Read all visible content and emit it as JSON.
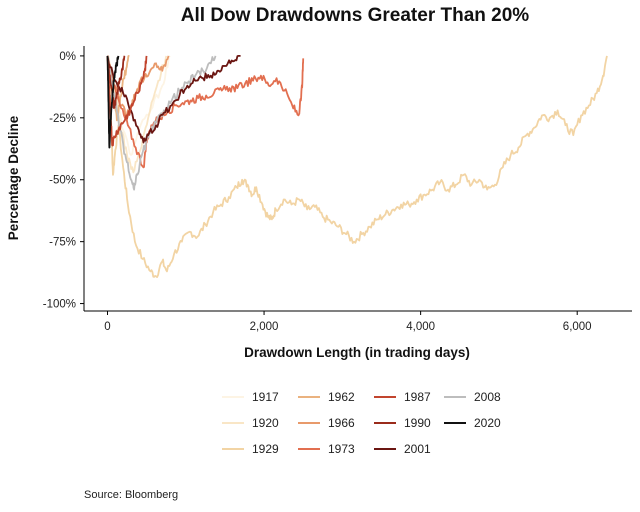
{
  "chart_data": {
    "type": "line",
    "title": "All Dow Drawdowns Greater Than 20%",
    "xlabel": "Drawdown Length (in trading days)",
    "ylabel": "Percentage Decline",
    "xlim": [
      -300,
      6700
    ],
    "ylim": [
      -103,
      4
    ],
    "x_ticks": [
      0,
      2000,
      4000,
      6000
    ],
    "x_tick_labels": [
      "0",
      "2,000",
      "4,000",
      "6,000"
    ],
    "y_ticks": [
      0,
      -25,
      -50,
      -75,
      -100
    ],
    "y_tick_labels": [
      "0%",
      "-25%",
      "-50%",
      "-75%",
      "-100%"
    ],
    "grid": false,
    "legend_position": "bottom",
    "source": "Source:  Bloomberg",
    "series": [
      {
        "name": "1917",
        "color": "#fdf4e4",
        "points": [
          [
            0,
            0
          ],
          [
            100,
            -15
          ],
          [
            200,
            -30
          ],
          [
            300,
            -40
          ],
          [
            400,
            -30
          ],
          [
            550,
            -22
          ],
          [
            700,
            -12
          ],
          [
            800,
            0
          ]
        ]
      },
      {
        "name": "1920",
        "color": "#f9e6c6",
        "points": [
          [
            0,
            0
          ],
          [
            80,
            -10
          ],
          [
            160,
            -28
          ],
          [
            250,
            -40
          ],
          [
            330,
            -47
          ],
          [
            420,
            -38
          ],
          [
            520,
            -25
          ],
          [
            650,
            -10
          ],
          [
            750,
            0
          ]
        ]
      },
      {
        "name": "1929",
        "color": "#f2d4a4",
        "points": [
          [
            0,
            0
          ],
          [
            30,
            -10
          ],
          [
            50,
            -30
          ],
          [
            70,
            -48
          ],
          [
            100,
            -38
          ],
          [
            140,
            -28
          ],
          [
            200,
            -45
          ],
          [
            260,
            -60
          ],
          [
            350,
            -75
          ],
          [
            450,
            -82
          ],
          [
            550,
            -87
          ],
          [
            620,
            -89
          ],
          [
            700,
            -83
          ],
          [
            760,
            -87
          ],
          [
            850,
            -80
          ],
          [
            950,
            -75
          ],
          [
            1050,
            -71
          ],
          [
            1150,
            -73
          ],
          [
            1250,
            -68
          ],
          [
            1350,
            -63
          ],
          [
            1450,
            -60
          ],
          [
            1550,
            -57
          ],
          [
            1650,
            -53
          ],
          [
            1720,
            -50
          ],
          [
            1790,
            -52
          ],
          [
            1850,
            -56
          ],
          [
            1900,
            -53
          ],
          [
            1980,
            -60
          ],
          [
            2050,
            -65
          ],
          [
            2100,
            -66
          ],
          [
            2150,
            -62
          ],
          [
            2250,
            -58
          ],
          [
            2350,
            -60
          ],
          [
            2450,
            -58
          ],
          [
            2550,
            -62
          ],
          [
            2650,
            -61
          ],
          [
            2750,
            -65
          ],
          [
            2850,
            -67
          ],
          [
            2950,
            -69
          ],
          [
            3050,
            -72
          ],
          [
            3150,
            -75
          ],
          [
            3250,
            -72
          ],
          [
            3350,
            -69
          ],
          [
            3450,
            -66
          ],
          [
            3550,
            -64
          ],
          [
            3650,
            -62
          ],
          [
            3750,
            -60
          ],
          [
            3850,
            -60
          ],
          [
            3950,
            -58
          ],
          [
            4050,
            -56
          ],
          [
            4150,
            -54
          ],
          [
            4250,
            -51
          ],
          [
            4350,
            -54
          ],
          [
            4450,
            -52
          ],
          [
            4550,
            -48
          ],
          [
            4650,
            -52
          ],
          [
            4750,
            -50
          ],
          [
            4850,
            -54
          ],
          [
            4950,
            -52
          ],
          [
            5050,
            -45
          ],
          [
            5150,
            -40
          ],
          [
            5250,
            -37
          ],
          [
            5350,
            -32
          ],
          [
            5450,
            -29
          ],
          [
            5550,
            -24
          ],
          [
            5650,
            -25
          ],
          [
            5750,
            -22
          ],
          [
            5850,
            -28
          ],
          [
            5950,
            -32
          ],
          [
            6050,
            -24
          ],
          [
            6150,
            -20
          ],
          [
            6250,
            -15
          ],
          [
            6330,
            -8
          ],
          [
            6380,
            0
          ]
        ]
      },
      {
        "name": "1962",
        "color": "#eab27f",
        "points": [
          [
            0,
            0
          ],
          [
            30,
            -8
          ],
          [
            60,
            -14
          ],
          [
            90,
            -20
          ],
          [
            120,
            -26
          ],
          [
            150,
            -20
          ],
          [
            190,
            -12
          ],
          [
            240,
            -5
          ],
          [
            280,
            0
          ]
        ]
      },
      {
        "name": "1966",
        "color": "#e89a6b",
        "points": [
          [
            0,
            0
          ],
          [
            60,
            -10
          ],
          [
            120,
            -15
          ],
          [
            180,
            -20
          ],
          [
            240,
            -24
          ],
          [
            300,
            -20
          ],
          [
            360,
            -15
          ],
          [
            420,
            -10
          ],
          [
            520,
            -8
          ],
          [
            620,
            -3
          ],
          [
            700,
            -6
          ],
          [
            780,
            0
          ]
        ]
      },
      {
        "name": "1973",
        "color": "#e26f50",
        "points": [
          [
            0,
            0
          ],
          [
            80,
            -12
          ],
          [
            160,
            -20
          ],
          [
            260,
            -28
          ],
          [
            360,
            -37
          ],
          [
            460,
            -45
          ],
          [
            500,
            -35
          ],
          [
            560,
            -28
          ],
          [
            660,
            -25
          ],
          [
            760,
            -23
          ],
          [
            860,
            -20
          ],
          [
            960,
            -19
          ],
          [
            1060,
            -18
          ],
          [
            1160,
            -17
          ],
          [
            1260,
            -16
          ],
          [
            1360,
            -15
          ],
          [
            1460,
            -14
          ],
          [
            1560,
            -13
          ],
          [
            1660,
            -13
          ],
          [
            1760,
            -11
          ],
          [
            1860,
            -10
          ],
          [
            1960,
            -8
          ],
          [
            2060,
            -12
          ],
          [
            2160,
            -9
          ],
          [
            2260,
            -14
          ],
          [
            2360,
            -20
          ],
          [
            2440,
            -24
          ],
          [
            2470,
            -18
          ],
          [
            2490,
            -10
          ],
          [
            2500,
            -1
          ]
        ]
      },
      {
        "name": "1987",
        "color": "#c2452e",
        "points": [
          [
            0,
            0
          ],
          [
            20,
            -12
          ],
          [
            45,
            -27
          ],
          [
            60,
            -36
          ],
          [
            90,
            -33
          ],
          [
            140,
            -30
          ],
          [
            200,
            -27
          ],
          [
            260,
            -24
          ],
          [
            320,
            -20
          ],
          [
            380,
            -15
          ],
          [
            440,
            -10
          ],
          [
            480,
            -5
          ],
          [
            500,
            0
          ]
        ]
      },
      {
        "name": "1990",
        "color": "#9a2b1b",
        "points": [
          [
            0,
            0
          ],
          [
            25,
            -8
          ],
          [
            50,
            -13
          ],
          [
            80,
            -21
          ],
          [
            110,
            -17
          ],
          [
            150,
            -11
          ],
          [
            190,
            -5
          ],
          [
            220,
            0
          ]
        ]
      },
      {
        "name": "2001",
        "color": "#6b1612",
        "points": [
          [
            0,
            0
          ],
          [
            100,
            -10
          ],
          [
            200,
            -15
          ],
          [
            300,
            -22
          ],
          [
            400,
            -30
          ],
          [
            460,
            -35
          ],
          [
            520,
            -32
          ],
          [
            620,
            -28
          ],
          [
            720,
            -23
          ],
          [
            820,
            -20
          ],
          [
            920,
            -16
          ],
          [
            1020,
            -12
          ],
          [
            1120,
            -10
          ],
          [
            1220,
            -9
          ],
          [
            1320,
            -8
          ],
          [
            1420,
            -6
          ],
          [
            1520,
            -4
          ],
          [
            1620,
            -2
          ],
          [
            1700,
            0
          ]
        ]
      },
      {
        "name": "2008",
        "color": "#bdbdbd",
        "points": [
          [
            0,
            0
          ],
          [
            80,
            -15
          ],
          [
            160,
            -30
          ],
          [
            240,
            -42
          ],
          [
            300,
            -50
          ],
          [
            340,
            -54
          ],
          [
            380,
            -48
          ],
          [
            440,
            -40
          ],
          [
            520,
            -33
          ],
          [
            620,
            -27
          ],
          [
            720,
            -22
          ],
          [
            820,
            -18
          ],
          [
            920,
            -14
          ],
          [
            1020,
            -11
          ],
          [
            1120,
            -8
          ],
          [
            1220,
            -6
          ],
          [
            1320,
            -3
          ],
          [
            1380,
            0
          ]
        ]
      },
      {
        "name": "2020",
        "color": "#111111",
        "points": [
          [
            0,
            0
          ],
          [
            8,
            -10
          ],
          [
            16,
            -25
          ],
          [
            24,
            -37
          ],
          [
            34,
            -30
          ],
          [
            48,
            -22
          ],
          [
            64,
            -16
          ],
          [
            80,
            -10
          ],
          [
            100,
            -6
          ],
          [
            120,
            -3
          ],
          [
            140,
            0
          ]
        ]
      }
    ]
  }
}
